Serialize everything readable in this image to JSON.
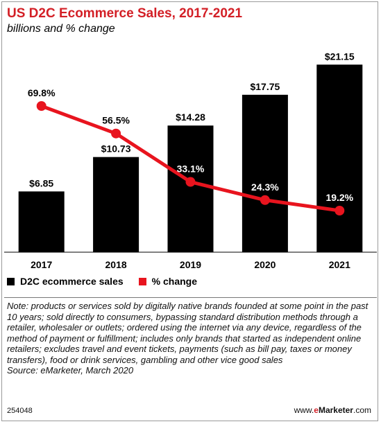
{
  "header": {
    "title": "US D2C Ecommerce Sales, 2017-2021",
    "subtitle": "billions and % change"
  },
  "legend": [
    {
      "label": "D2C ecommerce sales",
      "color": "#000000"
    },
    {
      "label": "% change",
      "color": "#e8141e"
    }
  ],
  "chart_data": {
    "type": "bar",
    "categories": [
      "2017",
      "2018",
      "2019",
      "2020",
      "2021"
    ],
    "series": [
      {
        "name": "D2C ecommerce sales",
        "type": "bar",
        "values": [
          6.85,
          10.73,
          14.28,
          17.75,
          21.15
        ],
        "labels": [
          "$6.85",
          "$10.73",
          "$14.28",
          "$17.75",
          "$21.15"
        ],
        "color": "#000000"
      },
      {
        "name": "% change",
        "type": "line",
        "values": [
          69.8,
          56.5,
          33.1,
          24.3,
          19.2
        ],
        "labels": [
          "69.8%",
          "56.5%",
          "33.1%",
          "24.3%",
          "19.2%"
        ],
        "color": "#e8141e"
      }
    ],
    "title": "US D2C Ecommerce Sales, 2017-2021",
    "subtitle": "billions and % change"
  },
  "note": {
    "text": "Note: products or services sold by digitally native brands founded at some point in the past 10 years; sold directly to consumers, bypassing standard distribution methods through a retailer, wholesaler or outlets; ordered using the internet via any device, regardless of the method of payment or fulfillment; includes only brands that started as independent online retailers; excludes travel and event tickets, payments (such as bill pay, taxes or money transfers), food or drink services, gambling and other vice good sales",
    "source": "Source: eMarketer, March 2020"
  },
  "footer": {
    "id": "254048",
    "brand_prefix": "www.",
    "brand_e": "e",
    "brand_name": "Marketer",
    "brand_suffix": ".com"
  }
}
